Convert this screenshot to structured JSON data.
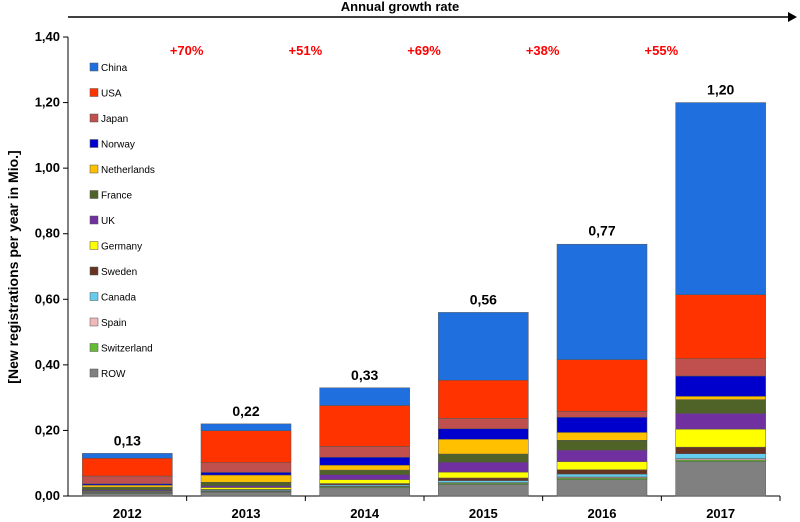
{
  "chart_data": {
    "type": "bar",
    "stacked": true,
    "title": "Annual growth rate",
    "ylabel": "[New registrations per year in Mio.]",
    "xlabel": "",
    "ylim": [
      0,
      1.4
    ],
    "yticks": [
      "0,00",
      "0,20",
      "0,40",
      "0,60",
      "0,80",
      "1,00",
      "1,20",
      "1,40"
    ],
    "grid": false,
    "legend_position": "top-left",
    "categories": [
      "2012",
      "2013",
      "2014",
      "2015",
      "2016",
      "2017"
    ],
    "totals": [
      0.13,
      0.22,
      0.33,
      0.56,
      0.77,
      1.2
    ],
    "total_labels": [
      "0,13",
      "0,22",
      "0,33",
      "0,56",
      "0,77",
      "1,20"
    ],
    "growth_rates": [
      "+70%",
      "+51%",
      "+69%",
      "+38%",
      "+55%"
    ],
    "series": [
      {
        "name": "ROW",
        "color": "#808080",
        "values": [
          0.008,
          0.012,
          0.025,
          0.035,
          0.05,
          0.105
        ]
      },
      {
        "name": "Switzerland",
        "color": "#66BB33",
        "values": [
          0.002,
          0.002,
          0.003,
          0.004,
          0.005,
          0.005
        ]
      },
      {
        "name": "Spain",
        "color": "#F2B8B8",
        "values": [
          0.001,
          0.001,
          0.002,
          0.002,
          0.003,
          0.004
        ]
      },
      {
        "name": "Canada",
        "color": "#66CCEE",
        "values": [
          0.002,
          0.003,
          0.004,
          0.006,
          0.009,
          0.015
        ]
      },
      {
        "name": "Sweden",
        "color": "#663322",
        "values": [
          0.001,
          0.002,
          0.004,
          0.008,
          0.013,
          0.02
        ]
      },
      {
        "name": "Germany",
        "color": "#FFFF00",
        "values": [
          0.002,
          0.006,
          0.012,
          0.018,
          0.025,
          0.055
        ]
      },
      {
        "name": "UK",
        "color": "#7030A0",
        "values": [
          0.003,
          0.005,
          0.015,
          0.03,
          0.035,
          0.048
        ]
      },
      {
        "name": "France",
        "color": "#4F6228",
        "values": [
          0.008,
          0.011,
          0.014,
          0.025,
          0.03,
          0.042
        ]
      },
      {
        "name": "Netherlands",
        "color": "#FFC000",
        "values": [
          0.006,
          0.022,
          0.015,
          0.045,
          0.024,
          0.01
        ]
      },
      {
        "name": "Norway",
        "color": "#0000CC",
        "values": [
          0.004,
          0.008,
          0.024,
          0.032,
          0.046,
          0.062
        ]
      },
      {
        "name": "Japan",
        "color": "#C0504D",
        "values": [
          0.024,
          0.03,
          0.033,
          0.032,
          0.018,
          0.053
        ]
      },
      {
        "name": "USA",
        "color": "#FF3300",
        "values": [
          0.054,
          0.097,
          0.125,
          0.116,
          0.158,
          0.195
        ]
      },
      {
        "name": "China",
        "color": "#1F6FDF",
        "values": [
          0.015,
          0.021,
          0.054,
          0.207,
          0.352,
          0.586
        ]
      }
    ]
  }
}
